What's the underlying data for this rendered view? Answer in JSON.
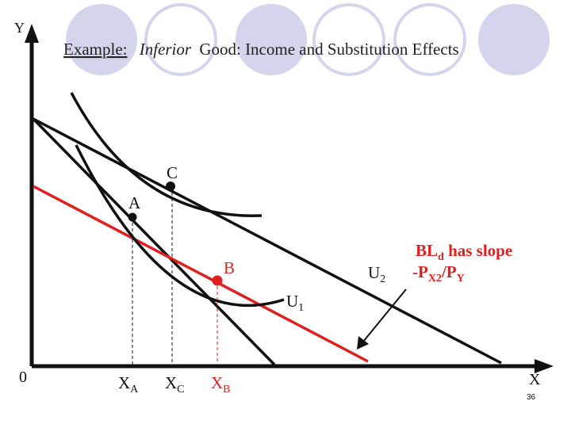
{
  "title": {
    "prefix": "Example:",
    "italic": "Inferior",
    "rest": "Good: Income and Substitution Effects"
  },
  "axes": {
    "y_label": "Y",
    "x_label": "X",
    "origin_label": "0"
  },
  "points": {
    "a": "A",
    "b": "B",
    "c": "C"
  },
  "curves": {
    "u1_base": "U",
    "u1_sub": "1",
    "u2_base": "U",
    "u2_sub": "2"
  },
  "x_ticks": {
    "xa_base": "X",
    "xa_sub": "A",
    "xc_base": "X",
    "xc_sub": "C",
    "xb_base": "X",
    "xb_sub": "B"
  },
  "annotation": {
    "line1_base": "BL",
    "line1_sub": "d",
    "line1_rest": " has slope",
    "line2_base": "-P",
    "line2_sub": "X2",
    "line2_mid": "/P",
    "line2_sub2": "Y"
  },
  "page_number": "36",
  "colors": {
    "accent_red": "#e02020",
    "circle_fill": "#d4d4ec",
    "ink": "#111111"
  }
}
